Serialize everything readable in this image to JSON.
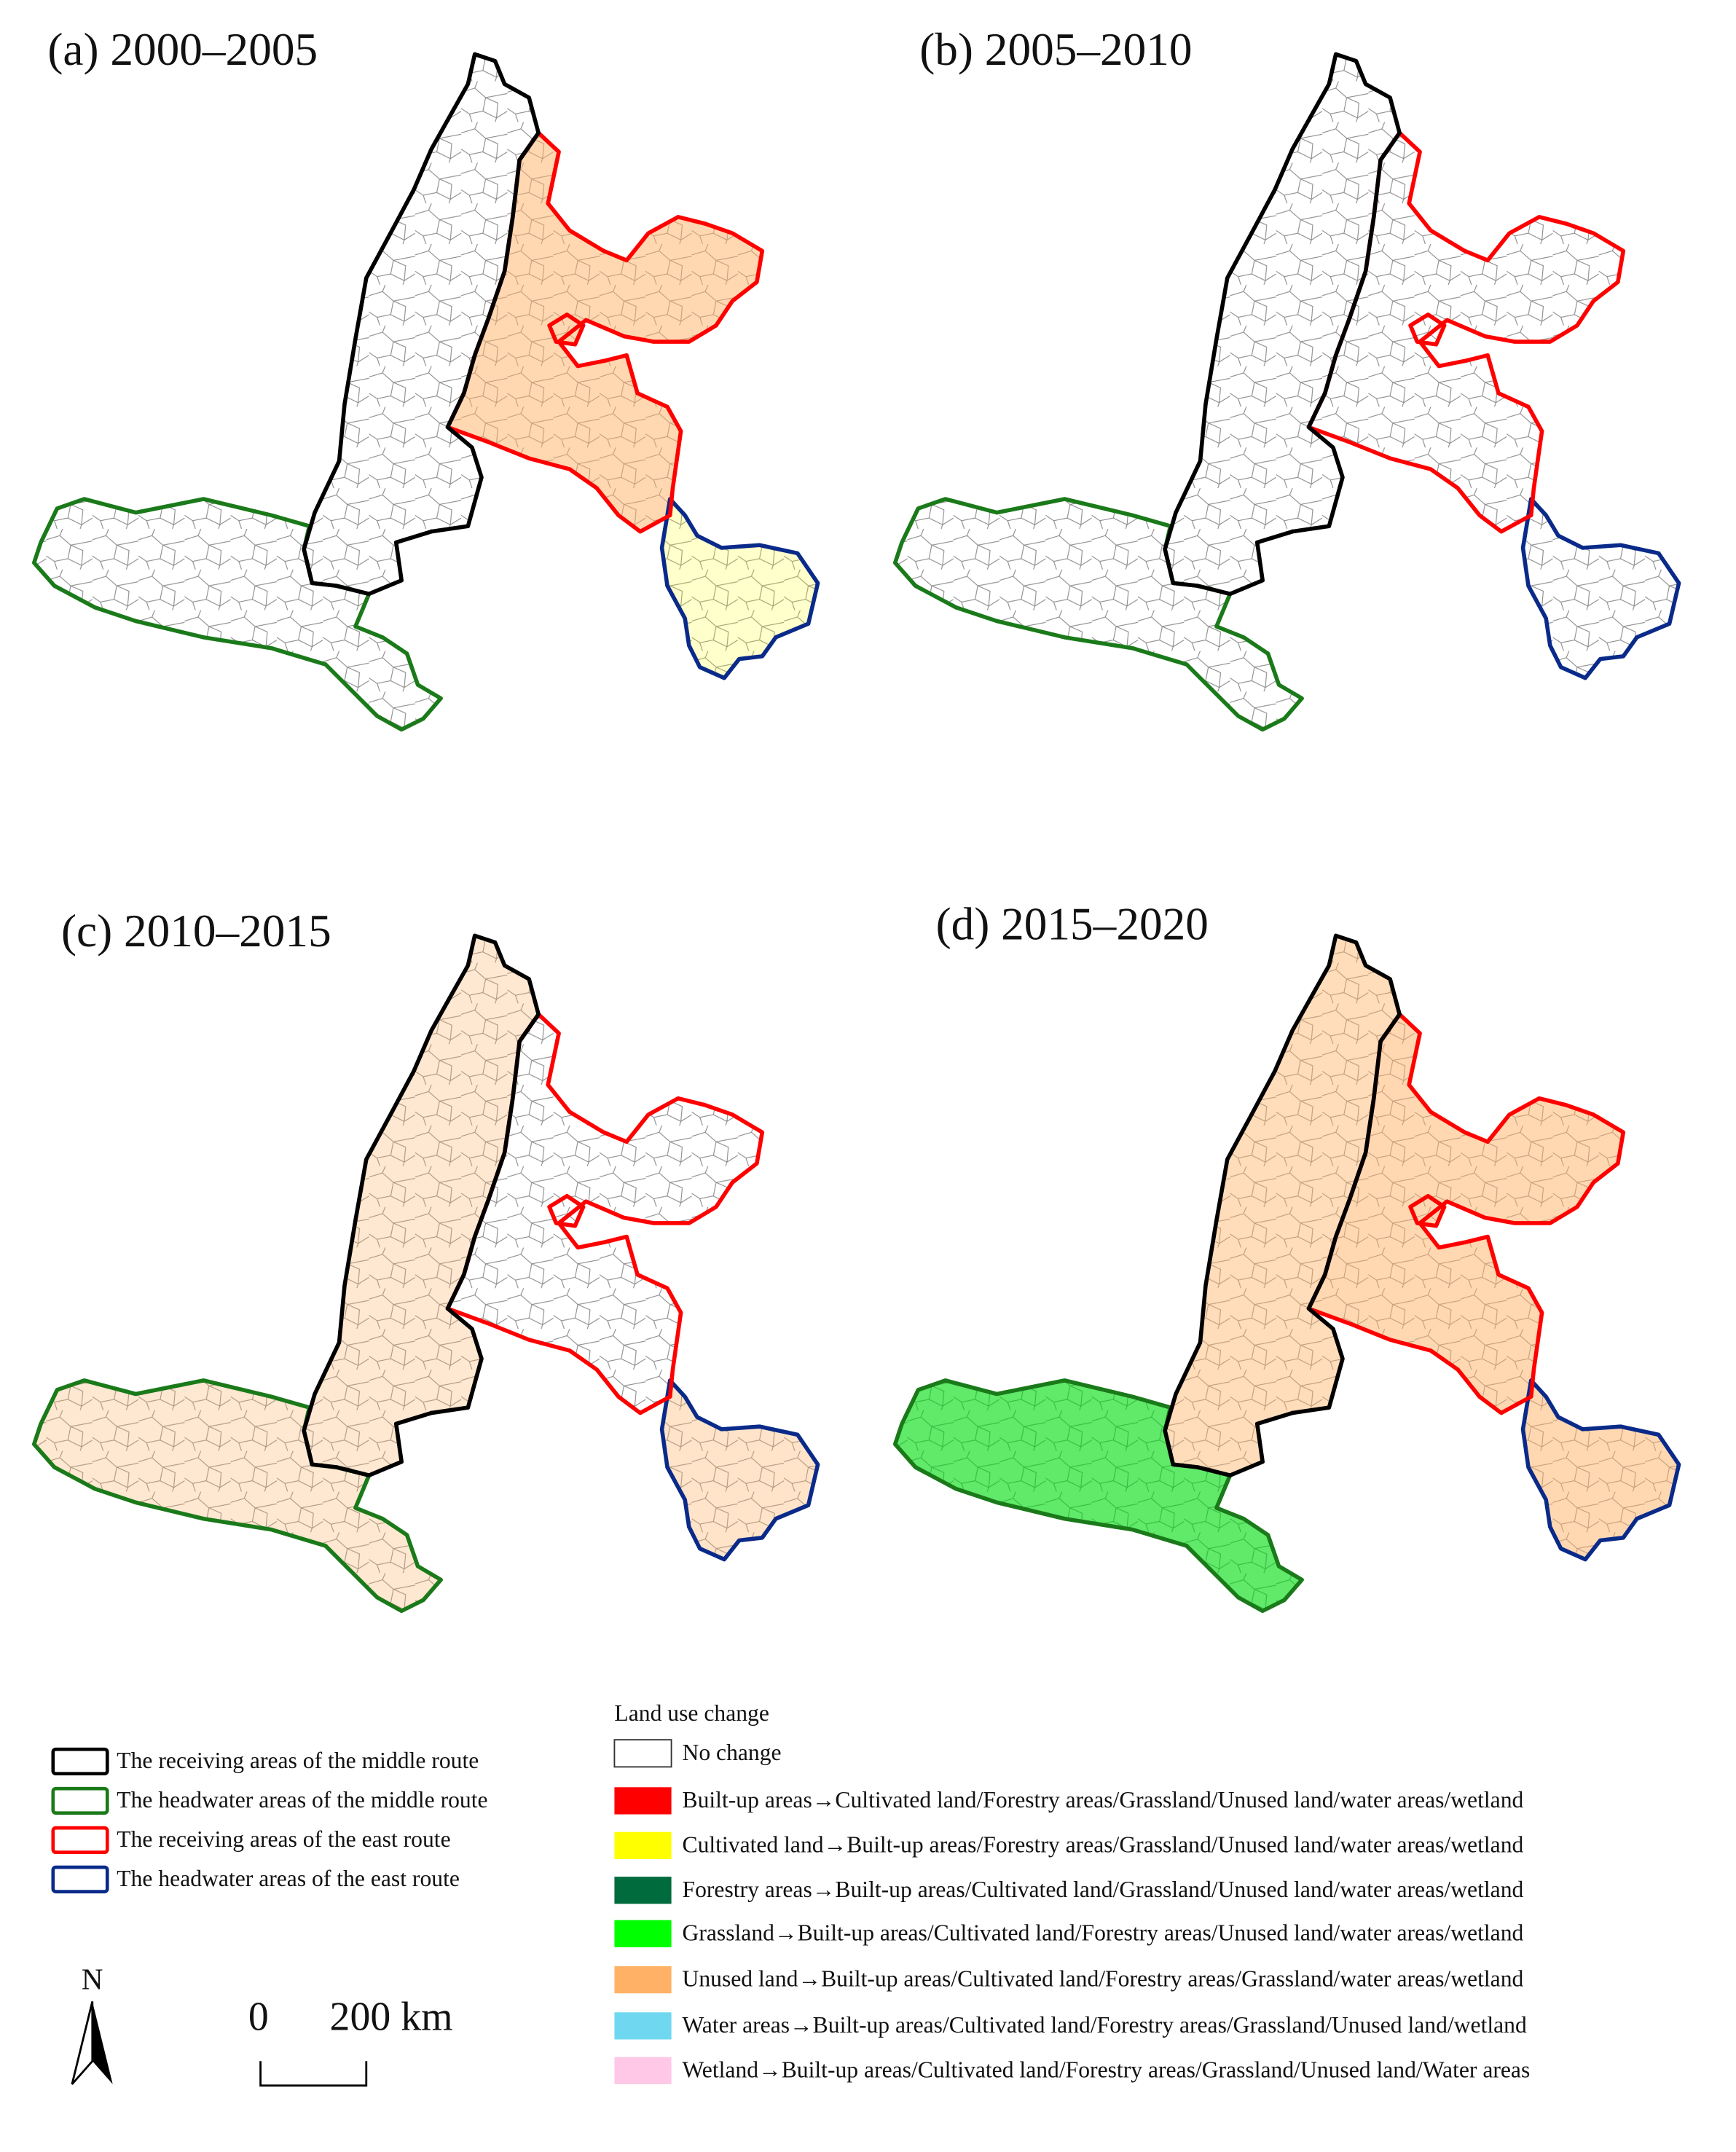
{
  "panels": [
    {
      "title": "(a) 2000–2005"
    },
    {
      "title": "(b) 2005–2010"
    },
    {
      "title": "(c) 2010–2015"
    },
    {
      "title": "(d) 2015–2020"
    }
  ],
  "boundary_legend": [
    {
      "label": "The receiving areas of the middle route",
      "color": "#000000"
    },
    {
      "label": "The headwater areas of the middle route",
      "color": "#1a7a1a"
    },
    {
      "label": "The receiving areas of the east route",
      "color": "#ff0000"
    },
    {
      "label": "The headwater areas of the east route",
      "color": "#0a2a8a"
    }
  ],
  "land_use_legend": {
    "title": "Land use change",
    "items": [
      {
        "label": "No change",
        "color": "#ffffff"
      },
      {
        "label": "Built-up areas→Cultivated land/Forestry areas/Grassland/Unused land/water areas/wetland",
        "color": "#ff0000"
      },
      {
        "label": "Cultivated land→Built-up areas/Forestry areas/Grassland/Unused land/water areas/wetland",
        "color": "#ffff00"
      },
      {
        "label": "Forestry areas→Built-up areas/Cultivated land/Grassland/Unused land/water areas/wetland",
        "color": "#006b3c"
      },
      {
        "label": "Grassland→Built-up areas/Cultivated land/Forestry areas/Unused land/water areas/wetland",
        "color": "#00ff00"
      },
      {
        "label": "Unused land→Built-up areas/Cultivated land/Forestry areas/Grassland/water areas/wetland",
        "color": "#ffb266"
      },
      {
        "label": "Water areas→Built-up areas/Cultivated land/Forestry areas/Grassland/Unused land/wetland",
        "color": "#6fd8f0"
      },
      {
        "label": "Wetland→Built-up areas/Cultivated land/Forestry areas/Grassland/Unused land/Water areas",
        "color": "#ffc8e6"
      }
    ]
  },
  "north_arrow": "N",
  "scale_bar": {
    "labels": [
      "0",
      "200 km"
    ]
  }
}
